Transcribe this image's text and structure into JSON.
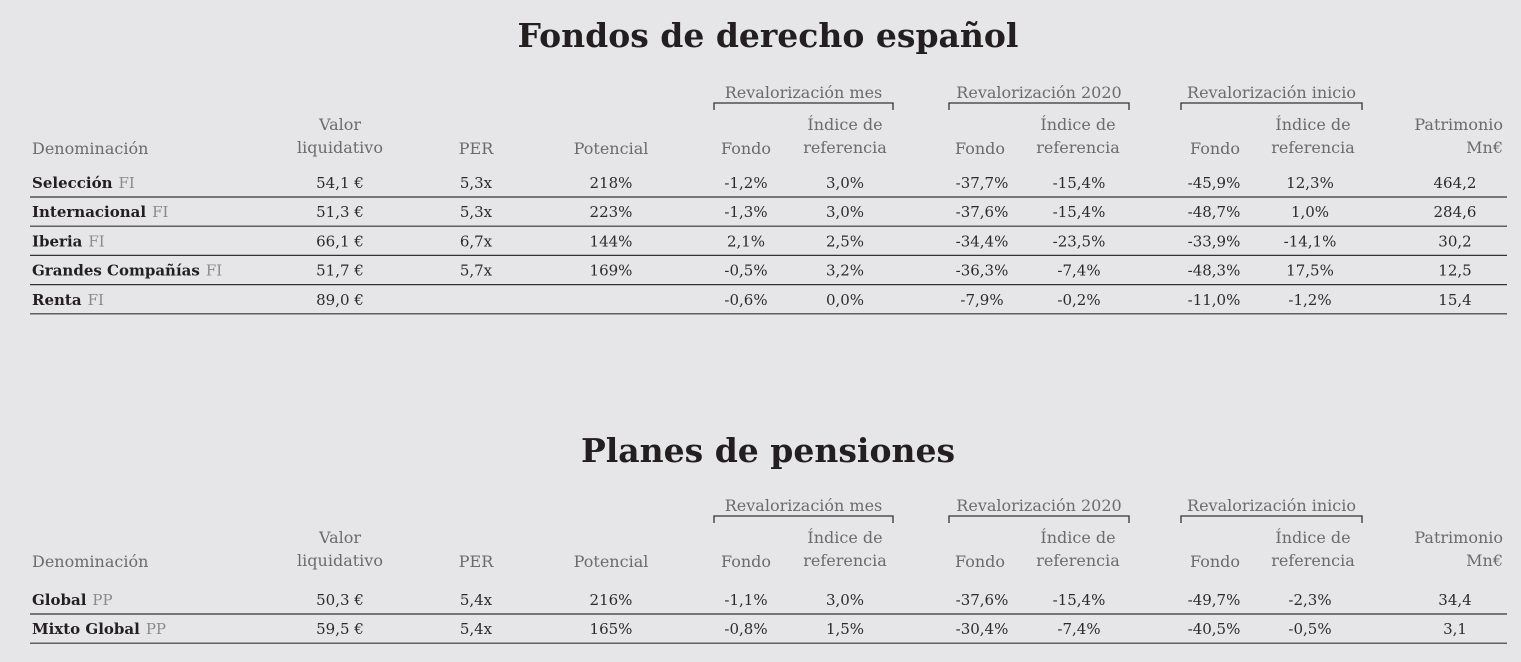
{
  "tables": [
    {
      "title": "Fondos de derecho español",
      "groups": [
        "Revalorización mes",
        "Revalorización 2020",
        "Revalorización inicio"
      ],
      "columns": [
        [
          "Denominación"
        ],
        [
          "Valor",
          "liquidativo"
        ],
        [
          "PER"
        ],
        [
          "Potencial"
        ],
        [
          "Fondo"
        ],
        [
          "Índice de",
          "referencia"
        ],
        [
          "Fondo"
        ],
        [
          "Índice de",
          "referencia"
        ],
        [
          "Fondo"
        ],
        [
          "Índice de",
          "referencia"
        ],
        [
          "Patrimonio",
          "Mn€"
        ]
      ],
      "rows": [
        {
          "name": "Selección",
          "suffix": "FI",
          "valor": "54,1 €",
          "per": "5,3x",
          "potencial": "218%",
          "mes_fondo": "-1,2%",
          "mes_indice": "3,0%",
          "a_fondo": "-37,7%",
          "a_indice": "-15,4%",
          "i_fondo": "-45,9%",
          "i_indice": "12,3%",
          "patrimonio": "464,2"
        },
        {
          "name": "Internacional",
          "suffix": "FI",
          "valor": "51,3 €",
          "per": "5,3x",
          "potencial": "223%",
          "mes_fondo": "-1,3%",
          "mes_indice": "3,0%",
          "a_fondo": "-37,6%",
          "a_indice": "-15,4%",
          "i_fondo": "-48,7%",
          "i_indice": "1,0%",
          "patrimonio": "284,6"
        },
        {
          "name": "Iberia",
          "suffix": "FI",
          "valor": "66,1 €",
          "per": "6,7x",
          "potencial": "144%",
          "mes_fondo": "2,1%",
          "mes_indice": "2,5%",
          "a_fondo": "-34,4%",
          "a_indice": "-23,5%",
          "i_fondo": "-33,9%",
          "i_indice": "-14,1%",
          "patrimonio": "30,2"
        },
        {
          "name": "Grandes Compañías",
          "suffix": "FI",
          "valor": "51,7 €",
          "per": "5,7x",
          "potencial": "169%",
          "mes_fondo": "-0,5%",
          "mes_indice": "3,2%",
          "a_fondo": "-36,3%",
          "a_indice": "-7,4%",
          "i_fondo": "-48,3%",
          "i_indice": "17,5%",
          "patrimonio": "12,5"
        },
        {
          "name": "Renta",
          "suffix": "FI",
          "valor": "89,0 €",
          "mes_fondo": "-0,6%",
          "mes_indice": "0,0%",
          "a_fondo": "-7,9%",
          "a_indice": "-0,2%",
          "i_fondo": "-11,0%",
          "i_indice": "-1,2%",
          "patrimonio": "15,4"
        }
      ]
    },
    {
      "title": "Planes de pensiones",
      "groups": [
        "Revalorización mes",
        "Revalorización 2020",
        "Revalorización inicio"
      ],
      "columns": [
        [
          "Denominación"
        ],
        [
          "Valor",
          "liquidativo"
        ],
        [
          "PER"
        ],
        [
          "Potencial"
        ],
        [
          "Fondo"
        ],
        [
          "Índice de",
          "referencia"
        ],
        [
          "Fondo"
        ],
        [
          "Índice de",
          "referencia"
        ],
        [
          "Fondo"
        ],
        [
          "Índice de",
          "referencia"
        ],
        [
          "Patrimonio",
          "Mn€"
        ]
      ],
      "rows": [
        {
          "name": "Global",
          "suffix": "PP",
          "valor": "50,3 €",
          "per": "5,4x",
          "potencial": "216%",
          "mes_fondo": "-1,1%",
          "mes_indice": "3,0%",
          "a_fondo": "-37,6%",
          "a_indice": "-15,4%",
          "i_fondo": "-49,7%",
          "i_indice": "-2,3%",
          "patrimonio": "34,4"
        },
        {
          "name": "Mixto Global",
          "suffix": "PP",
          "valor": "59,5 €",
          "per": "5,4x",
          "potencial": "165%",
          "mes_fondo": "-0,8%",
          "mes_indice": "1,5%",
          "a_fondo": "-30,4%",
          "a_indice": "-7,4%",
          "i_fondo": "-40,5%",
          "i_indice": "-0,5%",
          "patrimonio": "3,1"
        }
      ]
    }
  ]
}
